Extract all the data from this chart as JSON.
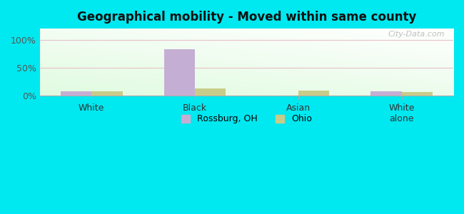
{
  "title": "Geographical mobility - Moved within same county",
  "categories": [
    "White",
    "Black",
    "Asian",
    "White\nalone"
  ],
  "rossburg_values": [
    8,
    83,
    0,
    8
  ],
  "ohio_values": [
    8,
    13,
    9,
    7
  ],
  "rossburg_color": "#c5aed4",
  "ohio_color": "#c8cc8a",
  "ylim": [
    0,
    120
  ],
  "yticks": [
    0,
    50,
    100
  ],
  "ytick_labels": [
    "0%",
    "50%",
    "100%"
  ],
  "legend_labels": [
    "Rossburg, OH",
    "Ohio"
  ],
  "bg_color": "#00e8f0",
  "grid_color": "#e8c0c8",
  "watermark": "City-Data.com",
  "bar_width": 0.3
}
